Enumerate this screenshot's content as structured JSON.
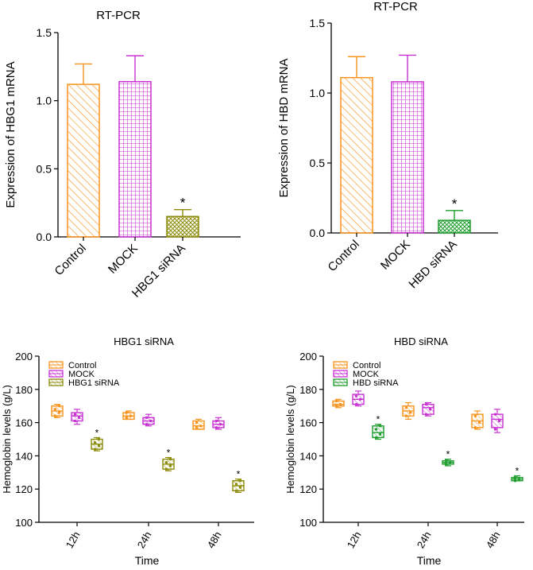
{
  "colors": {
    "control": "#f7941d",
    "mock": "#c832d2",
    "hbg1": "#8c8c0a",
    "hbd": "#1e9e2e",
    "axis": "#000000"
  },
  "chart_data": [
    {
      "id": "bar_hbg1",
      "type": "bar",
      "title": "RT-PCR",
      "xlabel": "",
      "ylabel": "Expression of HBG1 mRNA",
      "ylim": [
        0,
        1.5
      ],
      "yticks": [
        0.0,
        0.5,
        1.0,
        1.5
      ],
      "ytick_labels": [
        "0.0",
        "0.5",
        "1.0",
        "1.5"
      ],
      "categories": [
        "Control",
        "MOCK",
        "HBG1 siRNA"
      ],
      "values": [
        1.12,
        1.14,
        0.15
      ],
      "errors": [
        0.15,
        0.19,
        0.05
      ],
      "patterns": [
        "diag-control",
        "grid-mock",
        "cross-hbg1"
      ],
      "color_keys": [
        "control",
        "mock",
        "hbg1"
      ],
      "annotations": [
        "",
        "",
        "*"
      ]
    },
    {
      "id": "bar_hbd",
      "type": "bar",
      "title": "RT-PCR",
      "xlabel": "",
      "ylabel": "Expression of HBD mRNA",
      "ylim": [
        0,
        1.5
      ],
      "yticks": [
        0.0,
        0.5,
        1.0,
        1.5
      ],
      "ytick_labels": [
        "0.0",
        "0.5",
        "1.0",
        "1.5"
      ],
      "categories": [
        "Control",
        "MOCK",
        "HBD siRNA"
      ],
      "values": [
        1.11,
        1.08,
        0.09
      ],
      "errors": [
        0.15,
        0.19,
        0.07
      ],
      "patterns": [
        "diag-control",
        "grid-mock",
        "cross-hbd"
      ],
      "color_keys": [
        "control",
        "mock",
        "hbd"
      ],
      "annotations": [
        "",
        "",
        "*"
      ]
    },
    {
      "id": "box_hbg1",
      "type": "box",
      "title": "HBG1 siRNA",
      "xlabel": "Time",
      "ylabel": "Hemoglobin levels (g/L)",
      "ylim": [
        100,
        200
      ],
      "yticks": [
        100,
        120,
        140,
        160,
        180,
        200
      ],
      "ytick_labels": [
        "100",
        "120",
        "140",
        "160",
        "180",
        "200"
      ],
      "categories": [
        "12h",
        "24h",
        "48h"
      ],
      "legend": [
        "Control",
        "MOCK",
        "HBG1 siRNA"
      ],
      "legend_position": "top-left",
      "series": [
        {
          "name": "Control",
          "color_key": "control",
          "boxes": [
            {
              "min": 163,
              "q1": 164,
              "median": 167,
              "q3": 170,
              "max": 171,
              "points": [
                164,
                166,
                168,
                170
              ],
              "star": false
            },
            {
              "min": 162,
              "q1": 162,
              "median": 164,
              "q3": 166,
              "max": 167,
              "points": [
                163,
                164,
                166
              ],
              "star": false
            },
            {
              "min": 156,
              "q1": 156,
              "median": 158,
              "q3": 161,
              "max": 162,
              "points": [
                157,
                158,
                160
              ],
              "star": false
            }
          ]
        },
        {
          "name": "MOCK",
          "color_key": "mock",
          "boxes": [
            {
              "min": 159,
              "q1": 161,
              "median": 164,
              "q3": 166,
              "max": 168,
              "points": [
                161,
                163,
                165
              ],
              "star": false
            },
            {
              "min": 158,
              "q1": 159,
              "median": 161,
              "q3": 163,
              "max": 165,
              "points": [
                159,
                161,
                163
              ],
              "star": false
            },
            {
              "min": 156,
              "q1": 157,
              "median": 159,
              "q3": 161,
              "max": 163,
              "points": [
                157,
                159,
                161
              ],
              "star": false
            }
          ]
        },
        {
          "name": "HBG1 siRNA",
          "color_key": "hbg1",
          "boxes": [
            {
              "min": 143,
              "q1": 144,
              "median": 147,
              "q3": 150,
              "max": 151,
              "points": [
                144,
                146,
                148,
                150
              ],
              "star": true
            },
            {
              "min": 131,
              "q1": 132,
              "median": 135,
              "q3": 138,
              "max": 139,
              "points": [
                132,
                134,
                136,
                138
              ],
              "star": true
            },
            {
              "min": 118,
              "q1": 119,
              "median": 122,
              "q3": 125,
              "max": 126,
              "points": [
                119,
                121,
                123,
                125
              ],
              "star": true
            }
          ]
        }
      ],
      "annotations": [
        "*",
        "*",
        "*"
      ]
    },
    {
      "id": "box_hbd",
      "type": "box",
      "title": "HBD siRNA",
      "xlabel": "Time",
      "ylabel": "Hemoglobin levels (g/L)",
      "ylim": [
        100,
        200
      ],
      "yticks": [
        100,
        120,
        140,
        160,
        180,
        200
      ],
      "ytick_labels": [
        "100",
        "120",
        "140",
        "160",
        "180",
        "200"
      ],
      "categories": [
        "12h",
        "24h",
        "48h"
      ],
      "legend": [
        "Control",
        "MOCK",
        "HBD siRNA"
      ],
      "legend_position": "top-left",
      "series": [
        {
          "name": "Control",
          "color_key": "control",
          "boxes": [
            {
              "min": 169,
              "q1": 170,
              "median": 171,
              "q3": 173,
              "max": 174,
              "points": [
                170,
                171,
                173
              ],
              "star": false
            },
            {
              "min": 162,
              "q1": 164,
              "median": 167,
              "q3": 170,
              "max": 172,
              "points": [
                164,
                166,
                169
              ],
              "star": false
            },
            {
              "min": 156,
              "q1": 157,
              "median": 161,
              "q3": 165,
              "max": 167,
              "points": [
                157,
                160,
                164
              ],
              "star": false
            }
          ]
        },
        {
          "name": "MOCK",
          "color_key": "mock",
          "boxes": [
            {
              "min": 170,
              "q1": 171,
              "median": 174,
              "q3": 177,
              "max": 179,
              "points": [
                171,
                174,
                176
              ],
              "star": false
            },
            {
              "min": 164,
              "q1": 165,
              "median": 169,
              "q3": 171,
              "max": 172,
              "points": [
                165,
                168,
                171
              ],
              "star": false
            },
            {
              "min": 154,
              "q1": 157,
              "median": 162,
              "q3": 165,
              "max": 168,
              "points": [
                156,
                161,
                165
              ],
              "star": false
            }
          ]
        },
        {
          "name": "HBD siRNA",
          "color_key": "hbd",
          "boxes": [
            {
              "min": 150,
              "q1": 151,
              "median": 154,
              "q3": 158,
              "max": 159,
              "points": [
                151,
                153,
                156,
                158
              ],
              "star": true
            },
            {
              "min": 134,
              "q1": 135,
              "median": 136,
              "q3": 137,
              "max": 138,
              "points": [
                135,
                136,
                137
              ],
              "star": true
            },
            {
              "min": 125,
              "q1": 125,
              "median": 126,
              "q3": 127,
              "max": 128,
              "points": [
                125,
                126,
                127
              ],
              "star": true
            }
          ]
        }
      ],
      "annotations": [
        "*",
        "*",
        "*"
      ]
    }
  ]
}
